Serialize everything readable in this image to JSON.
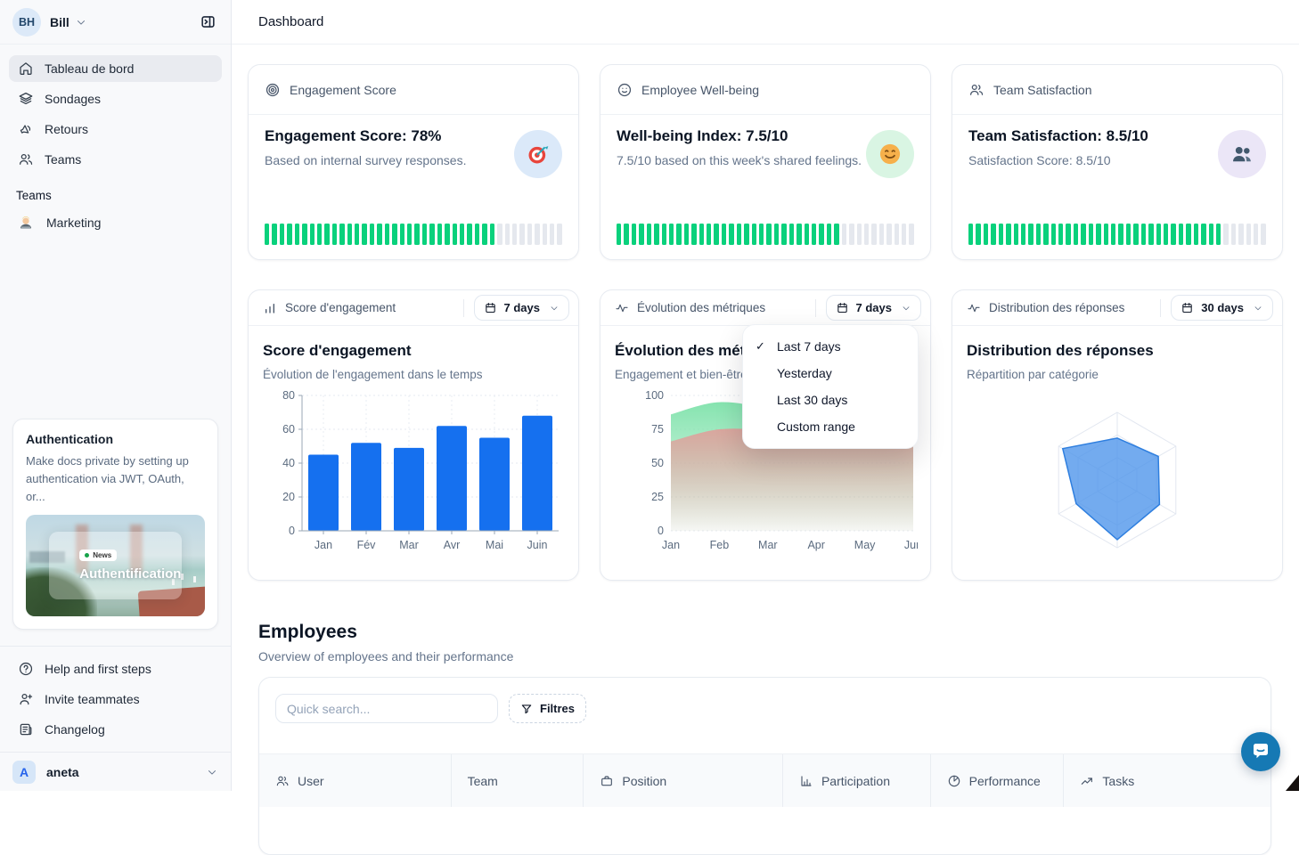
{
  "header": {
    "title": "Dashboard"
  },
  "sidebar": {
    "user": {
      "initials": "BH",
      "name": "Bill"
    },
    "nav": [
      {
        "label": "Tableau de bord",
        "icon": "home-icon",
        "active": true
      },
      {
        "label": "Sondages",
        "icon": "layers-icon",
        "active": false
      },
      {
        "label": "Retours",
        "icon": "megaphone-icon",
        "active": false
      },
      {
        "label": "Teams",
        "icon": "users-icon",
        "active": false
      }
    ],
    "teams_section": {
      "label": "Teams",
      "items": [
        {
          "label": "Marketing",
          "icon": "technologist-emoji"
        }
      ]
    },
    "promo": {
      "title": "Authentication",
      "body": "Make docs private by setting up authentication via JWT, OAuth, or...",
      "badge": "News",
      "image_title": "Authentification"
    },
    "footer_nav": [
      {
        "label": "Help and first steps",
        "icon": "help-circle-icon"
      },
      {
        "label": "Invite teammates",
        "icon": "user-plus-icon"
      },
      {
        "label": "Changelog",
        "icon": "changelog-icon"
      }
    ],
    "workspace": {
      "initial": "A",
      "name": "aneta"
    }
  },
  "stat_cards": [
    {
      "header": "Engagement Score",
      "header_icon": "target-icon",
      "title": "Engagement Score: 78%",
      "subtitle": "Based on internal survey responses.",
      "emoji": "dart-emoji",
      "emoji_bg": "#dbe9f9",
      "progress_pct": 78
    },
    {
      "header": "Employee Well-being",
      "header_icon": "smiley-icon",
      "title": "Well-being Index: 7.5/10",
      "subtitle": "7.5/10 based on this week's shared feelings.",
      "emoji": "smiling-face-emoji",
      "emoji_bg": "#d9f5e3",
      "progress_pct": 75
    },
    {
      "header": "Team Satisfaction",
      "header_icon": "users-icon",
      "title": "Team Satisfaction: 8.5/10",
      "subtitle": "Satisfaction Score: 8.5/10",
      "emoji": "busts-emoji",
      "emoji_bg": "#ebe6f7",
      "progress_pct": 85
    }
  ],
  "progress_colors": {
    "filled": "#09d17c",
    "empty": "#e5e8ee"
  },
  "dropdown": {
    "items": [
      "Last 7 days",
      "Yesterday",
      "Last 30 days",
      "Custom range"
    ],
    "selected": "Last 7 days"
  },
  "chart_data": [
    {
      "type": "bar",
      "title": "Score d'engagement",
      "subtitle": "Évolution de l'engagement dans le temps",
      "range_label": "7 days",
      "categories": [
        "Jan",
        "Fév",
        "Mar",
        "Avr",
        "Mai",
        "Juin"
      ],
      "values": [
        45,
        52,
        49,
        62,
        55,
        68
      ],
      "ylim": [
        0,
        80
      ],
      "yticks": [
        0,
        20,
        40,
        60,
        80
      ],
      "bar_color": "#1570ef",
      "grid": "dashed"
    },
    {
      "type": "area",
      "title": "Évolution des métriques",
      "subtitle": "Engagement et bien-être",
      "range_label": "7 days",
      "categories": [
        "Jan",
        "Feb",
        "Mar",
        "Apr",
        "May",
        "Jun"
      ],
      "ylim": [
        0,
        100
      ],
      "yticks": [
        0,
        25,
        50,
        75,
        100
      ],
      "series": [
        {
          "name": "engagement",
          "color": "#7fe2ab",
          "values": [
            86,
            95,
            88,
            63,
            67,
            74
          ]
        },
        {
          "name": "bien-etre",
          "color": "#e49a98",
          "values": [
            66,
            75,
            73,
            61,
            64,
            66
          ]
        }
      ],
      "grid": "dashed"
    },
    {
      "type": "radar",
      "title": "Distribution des réponses",
      "subtitle": "Répartition par catégorie",
      "range_label": "30 days",
      "axes": 6,
      "rings": 3,
      "values_pct": [
        62,
        70,
        72,
        88,
        70,
        93
      ],
      "fill_color": "#4b93ea",
      "stroke_color": "#2f7fdf",
      "grid_color": "#e2e7f0"
    }
  ],
  "employees": {
    "title": "Employees",
    "subtitle": "Overview of employees and their performance",
    "search_placeholder": "Quick search...",
    "filter_label": "Filtres",
    "columns": [
      {
        "label": "User",
        "icon": "users-icon"
      },
      {
        "label": "Team",
        "icon": null
      },
      {
        "label": "Position",
        "icon": "briefcase-icon"
      },
      {
        "label": "Participation",
        "icon": "column-chart-icon"
      },
      {
        "label": "Performance",
        "icon": "pie-chart-icon"
      },
      {
        "label": "Tasks",
        "icon": "trend-up-icon"
      }
    ]
  }
}
